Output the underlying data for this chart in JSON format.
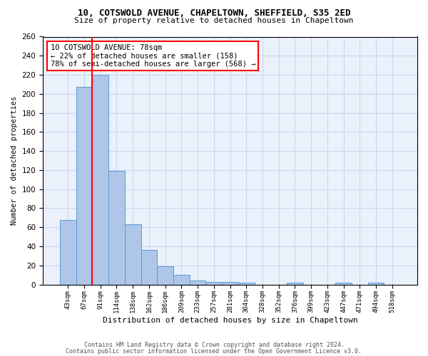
{
  "title1": "10, COTSWOLD AVENUE, CHAPELTOWN, SHEFFIELD, S35 2ED",
  "title2": "Size of property relative to detached houses in Chapeltown",
  "xlabel": "Distribution of detached houses by size in Chapeltown",
  "ylabel": "Number of detached properties",
  "categories": [
    "43sqm",
    "67sqm",
    "91sqm",
    "114sqm",
    "138sqm",
    "162sqm",
    "186sqm",
    "209sqm",
    "233sqm",
    "257sqm",
    "281sqm",
    "304sqm",
    "328sqm",
    "352sqm",
    "376sqm",
    "399sqm",
    "423sqm",
    "447sqm",
    "471sqm",
    "494sqm",
    "518sqm"
  ],
  "values": [
    68,
    207,
    220,
    119,
    63,
    36,
    19,
    10,
    4,
    3,
    3,
    2,
    0,
    0,
    2,
    0,
    0,
    2,
    0,
    2,
    0
  ],
  "bar_color": "#aec6e8",
  "bar_edge_color": "#5b9bd5",
  "red_line_index": 1.5,
  "annotation_line1": "10 COTSWOLD AVENUE: 78sqm",
  "annotation_line2": "← 22% of detached houses are smaller (158)",
  "annotation_line3": "78% of semi-detached houses are larger (568) →",
  "annotation_box_color": "white",
  "annotation_box_edge_color": "red",
  "footer1": "Contains HM Land Registry data © Crown copyright and database right 2024.",
  "footer2": "Contains public sector information licensed under the Open Government Licence v3.0.",
  "bg_color": "#eaf1fb",
  "grid_color": "#c8d8f0",
  "ylim": [
    0,
    260
  ],
  "yticks": [
    0,
    20,
    40,
    60,
    80,
    100,
    120,
    140,
    160,
    180,
    200,
    220,
    240,
    260
  ]
}
